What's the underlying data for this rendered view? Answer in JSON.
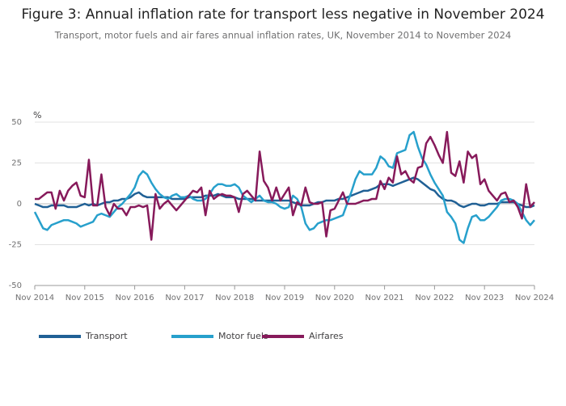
{
  "chart_data": {
    "type": "line",
    "title": "Figure 3: Annual inflation rate for transport less negative in November 2024",
    "subtitle": "Transport, motor fuels and air fares annual inflation rates, UK, November 2014 to November 2024",
    "y_axis_label": "%",
    "categories": [
      "Nov 2014",
      null,
      null,
      null,
      null,
      null,
      null,
      null,
      null,
      null,
      null,
      null,
      "Nov 2015",
      null,
      null,
      null,
      null,
      null,
      null,
      null,
      null,
      null,
      null,
      null,
      "Nov 2016",
      null,
      null,
      null,
      null,
      null,
      null,
      null,
      null,
      null,
      null,
      null,
      "Nov 2017",
      null,
      null,
      null,
      null,
      null,
      null,
      null,
      null,
      null,
      null,
      null,
      "Nov 2018",
      null,
      null,
      null,
      null,
      null,
      null,
      null,
      null,
      null,
      null,
      null,
      "Nov 2019",
      null,
      null,
      null,
      null,
      null,
      null,
      null,
      null,
      null,
      null,
      null,
      "Nov 2020",
      null,
      null,
      null,
      null,
      null,
      null,
      null,
      null,
      null,
      null,
      null,
      "Nov 2021",
      null,
      null,
      null,
      null,
      null,
      null,
      null,
      null,
      null,
      null,
      null,
      "Nov 2022",
      null,
      null,
      null,
      null,
      null,
      null,
      null,
      null,
      null,
      null,
      null,
      "Nov 2023",
      null,
      null,
      null,
      null,
      null,
      null,
      null,
      null,
      null,
      null,
      null,
      "Nov 2024"
    ],
    "series": [
      {
        "name": "Transport",
        "color": "#206095",
        "values": [
          0,
          -1,
          -2,
          -2,
          -1,
          -1,
          -1,
          -1,
          -2,
          -2,
          -2,
          -1,
          0,
          -1,
          0,
          -1,
          0,
          1,
          1,
          2,
          2,
          3,
          3,
          4,
          6,
          7,
          5,
          4,
          4,
          4,
          4,
          4,
          4,
          3,
          3,
          3,
          3,
          4,
          4,
          4,
          4,
          5,
          5,
          5,
          6,
          5,
          4,
          4,
          4,
          3,
          3,
          3,
          3,
          2,
          2,
          2,
          2,
          2,
          2,
          2,
          2,
          2,
          1,
          0,
          -1,
          -1,
          -1,
          0,
          1,
          1,
          2,
          2,
          2,
          3,
          3,
          4,
          5,
          6,
          7,
          8,
          8,
          9,
          10,
          12,
          12,
          12,
          11,
          12,
          13,
          14,
          15,
          16,
          15,
          13,
          11,
          9,
          8,
          5,
          3,
          2,
          2,
          1,
          -1,
          -2,
          -1,
          0,
          0,
          -1,
          -1,
          0,
          0,
          0,
          1,
          1,
          1,
          1,
          0,
          -1,
          -2,
          -2,
          -1
        ]
      },
      {
        "name": "Motor fuels",
        "color": "#27a0cc",
        "values": [
          -5,
          -10,
          -15,
          -16,
          -13,
          -12,
          -11,
          -10,
          -10,
          -11,
          -12,
          -14,
          -13,
          -12,
          -11,
          -7,
          -6,
          -7,
          -8,
          -5,
          -2,
          0,
          3,
          6,
          10,
          17,
          20,
          18,
          13,
          9,
          6,
          4,
          3,
          5,
          6,
          4,
          4,
          5,
          3,
          2,
          2,
          3,
          6,
          10,
          12,
          12,
          11,
          11,
          12,
          10,
          5,
          3,
          1,
          3,
          5,
          2,
          1,
          1,
          0,
          -2,
          -3,
          -2,
          5,
          3,
          -2,
          -12,
          -16,
          -15,
          -12,
          -11,
          -10,
          -10,
          -9,
          -8,
          -7,
          0,
          7,
          15,
          20,
          18,
          18,
          18,
          22,
          29,
          27,
          23,
          22,
          31,
          32,
          33,
          42,
          44,
          35,
          28,
          24,
          18,
          13,
          9,
          5,
          -5,
          -8,
          -12,
          -22,
          -24,
          -15,
          -8,
          -7,
          -10,
          -10,
          -8,
          -5,
          -2,
          2,
          3,
          3,
          2,
          0,
          -5,
          -10,
          -13,
          -10
        ]
      },
      {
        "name": "Airfares",
        "color": "#871a5b",
        "values": [
          3,
          3,
          5,
          7,
          7,
          -3,
          8,
          2,
          8,
          11,
          13,
          5,
          4,
          27,
          -1,
          -1,
          18,
          -2,
          -7,
          0,
          -3,
          -3,
          -7,
          -2,
          -2,
          -1,
          -2,
          -1,
          -22,
          6,
          -3,
          0,
          2,
          -1,
          -4,
          -1,
          2,
          5,
          8,
          7,
          10,
          -7,
          8,
          3,
          5,
          6,
          5,
          5,
          4,
          -5,
          6,
          8,
          5,
          2,
          32,
          14,
          10,
          2,
          10,
          2,
          6,
          10,
          -7,
          1,
          -1,
          10,
          1,
          0,
          0,
          1,
          -20,
          -4,
          -3,
          2,
          7,
          0,
          0,
          0,
          1,
          2,
          2,
          3,
          3,
          14,
          9,
          16,
          13,
          29,
          18,
          20,
          15,
          13,
          22,
          23,
          37,
          41,
          36,
          30,
          25,
          44,
          19,
          17,
          26,
          13,
          32,
          28,
          30,
          12,
          15,
          8,
          5,
          2,
          6,
          7,
          1,
          2,
          -2,
          -9,
          12,
          -2,
          1
        ]
      }
    ],
    "ylim": [
      -50,
      50
    ],
    "yticks": [
      50,
      25,
      0,
      -25,
      -50
    ],
    "grid": true
  }
}
